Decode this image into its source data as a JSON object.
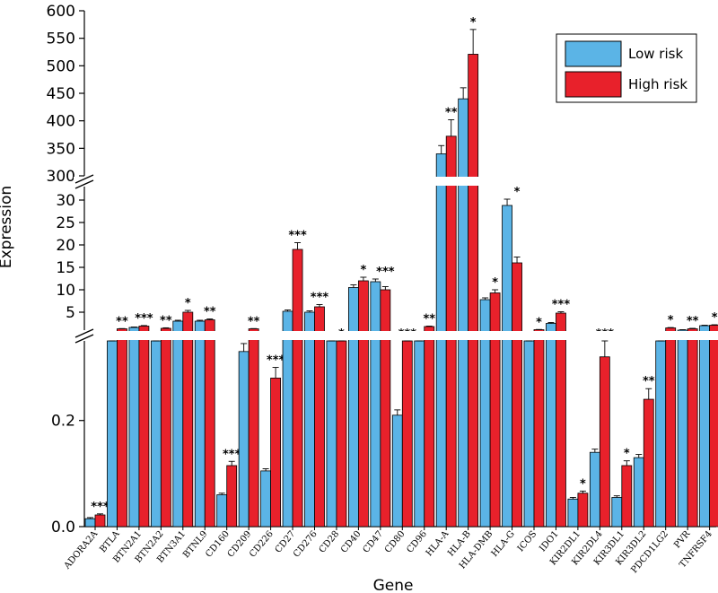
{
  "chart_data": {
    "type": "bar",
    "xlabel": "Gene",
    "ylabel": "Expression",
    "colors": {
      "low": "#5bb4e6",
      "high": "#e8212b",
      "error": "#000000"
    },
    "legend": {
      "position": "top-right",
      "entries": [
        "Low risk",
        "High risk"
      ]
    },
    "axis_breaks": [
      {
        "range": [
          0,
          0.35
        ],
        "ticks": [
          0.0,
          0.2
        ],
        "tick_labels": [
          "0.0",
          "0.2"
        ]
      },
      {
        "range": [
          1,
          33
        ],
        "ticks": [
          5,
          10,
          15,
          20,
          25,
          30
        ],
        "tick_labels": [
          "5",
          "10",
          "15",
          "20",
          "25",
          "30"
        ]
      },
      {
        "range": [
          300,
          600
        ],
        "ticks": [
          300,
          350,
          400,
          450,
          500,
          550,
          600
        ],
        "tick_labels": [
          "300",
          "350",
          "400",
          "450",
          "500",
          "550",
          "600"
        ]
      }
    ],
    "categories": [
      "ADORA2A",
      "BTLA",
      "BTN2A1",
      "BTN2A2",
      "BTN3A1",
      "BTNL9",
      "CD160",
      "CD209",
      "CD226",
      "CD27",
      "CD276",
      "CD28",
      "CD40",
      "CD47",
      "CD80",
      "CD96",
      "HLA-A",
      "HLA-B",
      "HLA-DMB",
      "HLA-G",
      "ICOS",
      "IDO1",
      "KIR2DL1",
      "KIR2DL4",
      "KIR3DL1",
      "KIR3DL2",
      "PDCD1LG2",
      "PVR",
      "TNFRSF4"
    ],
    "series": [
      {
        "name": "Low risk",
        "values": [
          0.015,
          0.35,
          1.6,
          0.8,
          3.0,
          3.0,
          0.06,
          0.33,
          0.105,
          5.2,
          5.0,
          0.6,
          10.5,
          11.8,
          0.21,
          0.5,
          340,
          440,
          7.8,
          28.8,
          0.6,
          2.5,
          0.052,
          0.14,
          0.055,
          0.13,
          0.5,
          1.0,
          2.0
        ],
        "errors": [
          0.002,
          0.015,
          0.1,
          0.1,
          0.2,
          0.2,
          0.003,
          0.015,
          0.004,
          0.3,
          0.3,
          0.05,
          0.6,
          0.6,
          0.01,
          0.05,
          15,
          20,
          0.4,
          1.4,
          0.05,
          0.2,
          0.003,
          0.006,
          0.003,
          0.006,
          0.05,
          0.1,
          0.1
        ]
      },
      {
        "name": "High risk",
        "values": [
          0.022,
          1.3,
          1.9,
          1.4,
          5.0,
          3.3,
          0.115,
          1.3,
          0.28,
          19.0,
          6.2,
          0.8,
          12.0,
          10.0,
          0.5,
          1.8,
          372,
          521,
          9.3,
          16.0,
          1.1,
          4.8,
          0.063,
          0.32,
          0.115,
          0.24,
          1.5,
          1.3,
          2.1
        ],
        "errors": [
          0.002,
          0.05,
          0.12,
          0.12,
          0.4,
          0.2,
          0.008,
          0.05,
          0.02,
          1.5,
          0.5,
          0.05,
          0.8,
          0.7,
          0.03,
          0.1,
          30,
          45,
          0.7,
          1.3,
          0.05,
          0.3,
          0.004,
          0.03,
          0.009,
          0.02,
          0.08,
          0.1,
          0.1
        ]
      }
    ],
    "significance": [
      "***",
      "**",
      "***",
      "**",
      "*",
      "**",
      "***",
      "**",
      "***",
      "***",
      "***",
      "*",
      "*",
      "***",
      "***",
      "**",
      "**",
      "*",
      "*",
      "*",
      "*",
      "***",
      "*",
      "***",
      "*",
      "**",
      "*",
      "**",
      "*"
    ]
  }
}
